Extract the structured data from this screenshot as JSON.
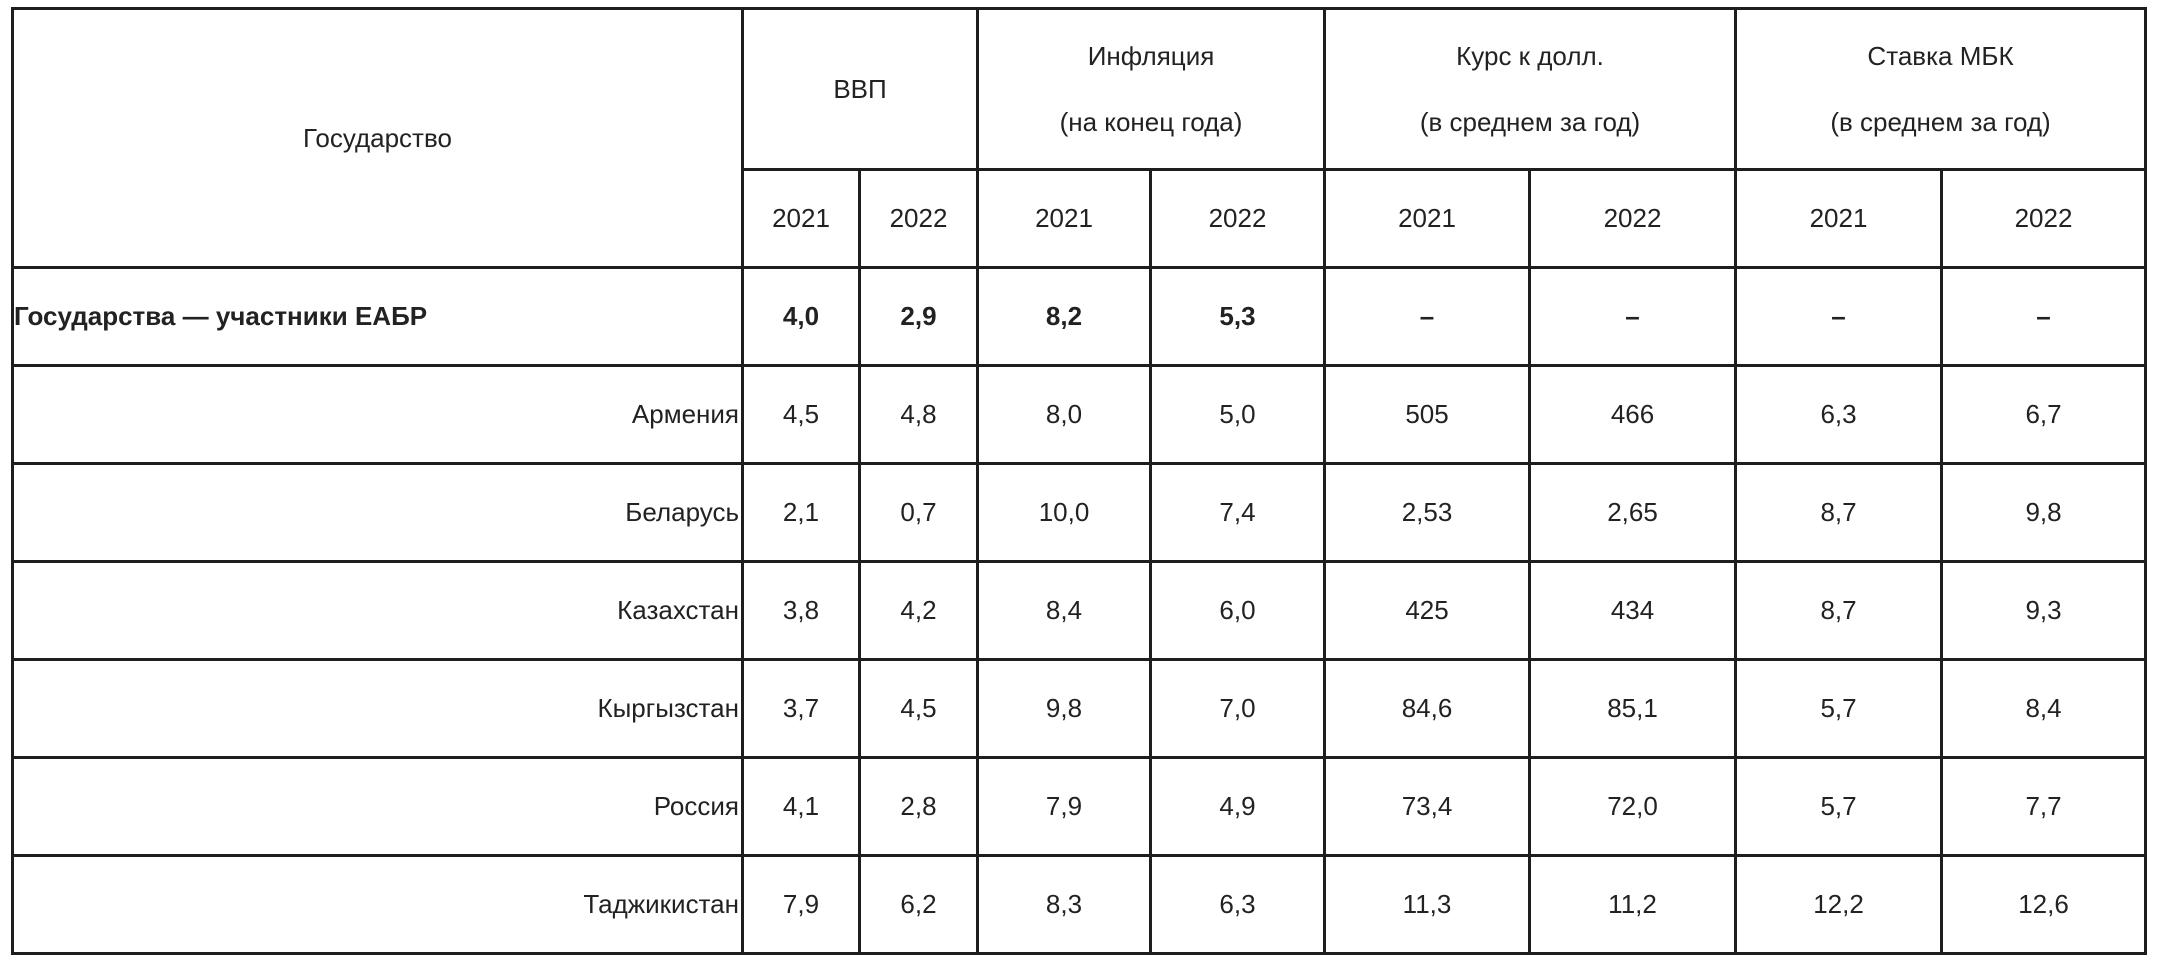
{
  "table": {
    "header": {
      "state": "Государство",
      "groups": [
        {
          "lines": [
            "ВВП"
          ]
        },
        {
          "lines": [
            "Инфляция",
            "(на конец года)"
          ]
        },
        {
          "lines": [
            "Курс к долл.",
            "(в среднем за год)"
          ]
        },
        {
          "lines": [
            "Ставка МБК",
            "(в среднем за год)"
          ]
        }
      ],
      "years": [
        "2021",
        "2022",
        "2021",
        "2022",
        "2021",
        "2022",
        "2021",
        "2022"
      ]
    },
    "rows": [
      {
        "name": "Государства — участники ЕАБР",
        "cells": [
          "4,0",
          "2,9",
          "8,2",
          "5,3",
          "–",
          "–",
          "–",
          "–"
        ]
      },
      {
        "name": "Армения",
        "cells": [
          "4,5",
          "4,8",
          "8,0",
          "5,0",
          "505",
          "466",
          "6,3",
          "6,7"
        ]
      },
      {
        "name": "Беларусь",
        "cells": [
          "2,1",
          "0,7",
          "10,0",
          "7,4",
          "2,53",
          "2,65",
          "8,7",
          "9,8"
        ]
      },
      {
        "name": "Казахстан",
        "cells": [
          "3,8",
          "4,2",
          "8,4",
          "6,0",
          "425",
          "434",
          "8,7",
          "9,3"
        ]
      },
      {
        "name": "Кыргызстан",
        "cells": [
          "3,7",
          "4,5",
          "9,8",
          "7,0",
          "84,6",
          "85,1",
          "5,7",
          "8,4"
        ]
      },
      {
        "name": "Россия",
        "cells": [
          "4,1",
          "2,8",
          "7,9",
          "4,9",
          "73,4",
          "72,0",
          "5,7",
          "7,7"
        ]
      },
      {
        "name": "Таджикистан",
        "cells": [
          "7,9",
          "6,2",
          "8,3",
          "6,3",
          "11,3",
          "11,2",
          "12,2",
          "12,6"
        ]
      }
    ]
  }
}
